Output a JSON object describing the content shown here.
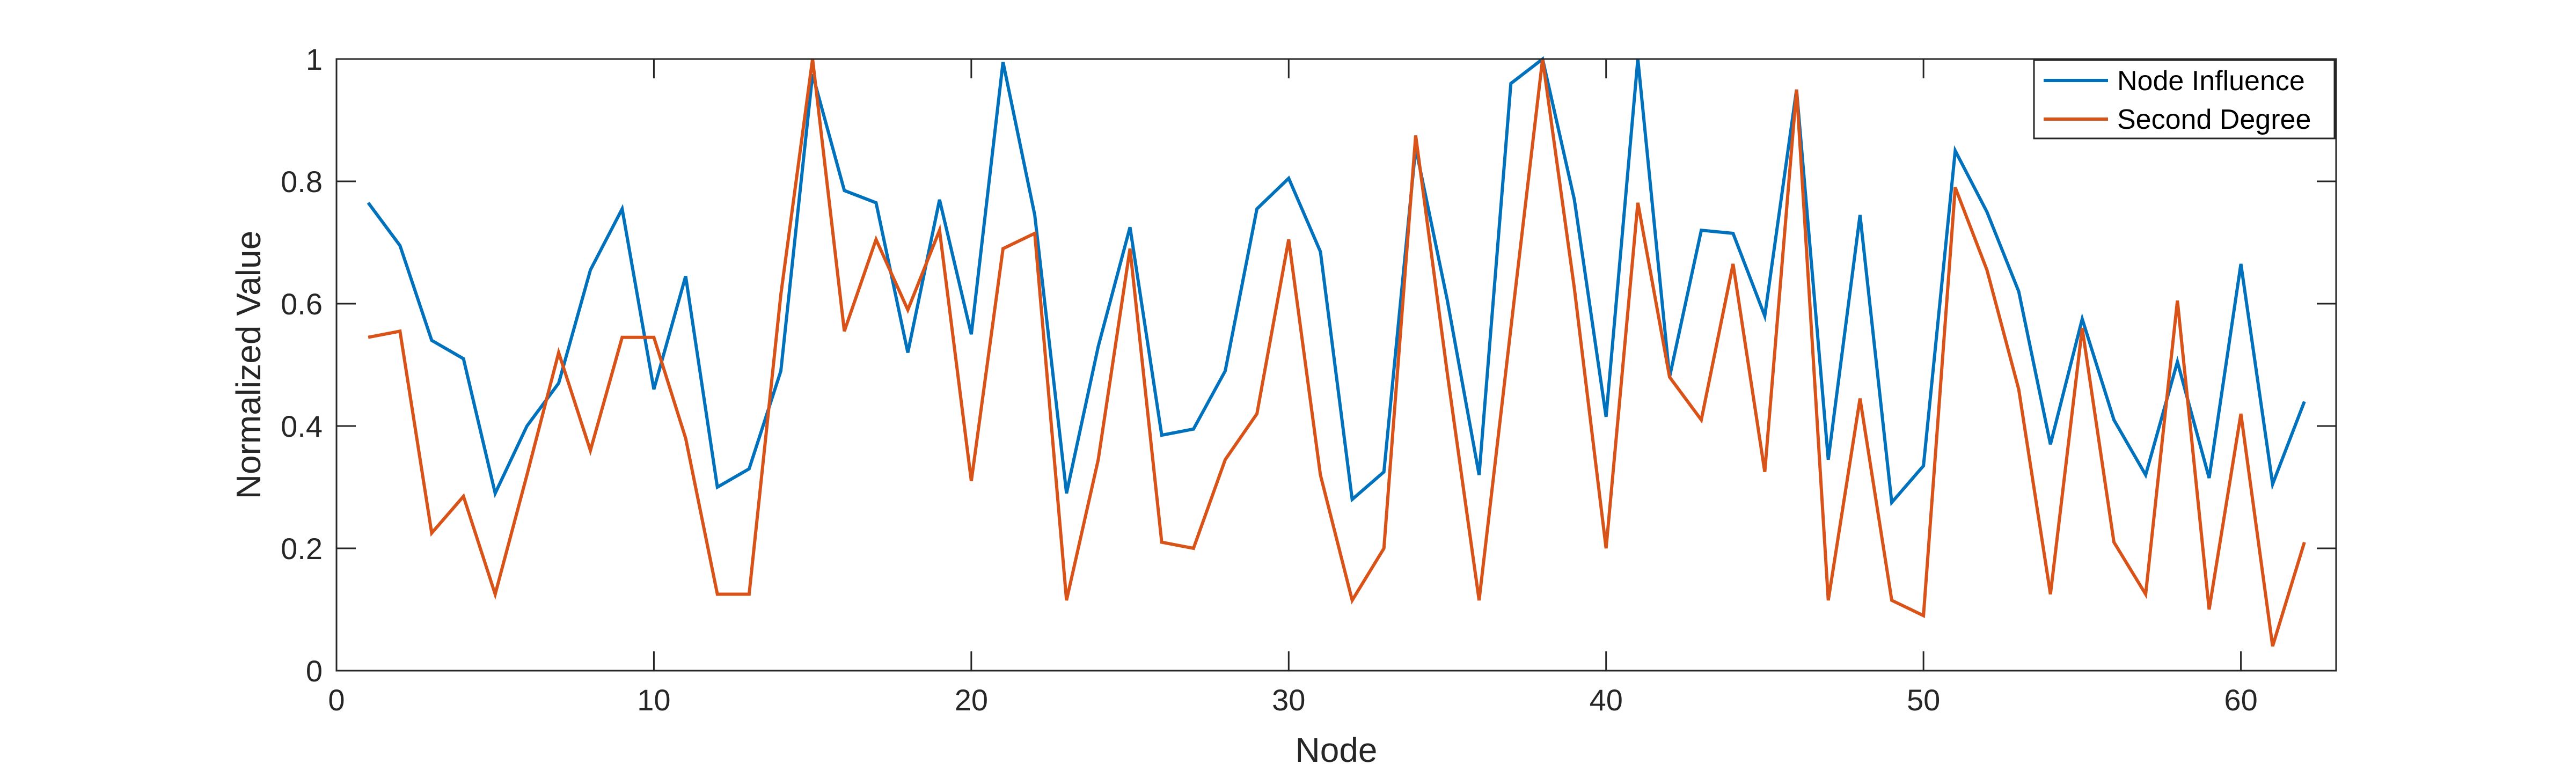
{
  "chart_data": {
    "type": "line",
    "xlabel": "Node",
    "ylabel": "Normalized Value",
    "xlim": [
      0,
      63
    ],
    "ylim": [
      0,
      1
    ],
    "xticks": [
      0,
      10,
      20,
      30,
      40,
      50,
      60
    ],
    "yticks": [
      0,
      0.2,
      0.4,
      0.6,
      0.8,
      1
    ],
    "ytick_labels": [
      "0",
      "0.2",
      "0.4",
      "0.6",
      "0.8",
      "1"
    ],
    "grid": false,
    "legend_position": "top-right",
    "x": [
      1,
      2,
      3,
      4,
      5,
      6,
      7,
      8,
      9,
      10,
      11,
      12,
      13,
      14,
      15,
      16,
      17,
      18,
      19,
      20,
      21,
      22,
      23,
      24,
      25,
      26,
      27,
      28,
      29,
      30,
      31,
      32,
      33,
      34,
      35,
      36,
      37,
      38,
      39,
      40,
      41,
      42,
      43,
      44,
      45,
      46,
      47,
      48,
      49,
      50,
      51,
      52,
      53,
      54,
      55,
      56,
      57,
      58,
      59,
      60,
      61,
      62
    ],
    "series": [
      {
        "name": "Node Influence",
        "color": "#0072BD",
        "values": [
          0.765,
          0.695,
          0.54,
          0.51,
          0.29,
          0.4,
          0.47,
          0.655,
          0.755,
          0.46,
          0.645,
          0.3,
          0.33,
          0.49,
          0.975,
          0.785,
          0.765,
          0.52,
          0.77,
          0.55,
          0.995,
          0.745,
          0.29,
          0.53,
          0.725,
          0.385,
          0.395,
          0.49,
          0.755,
          0.805,
          0.685,
          0.28,
          0.325,
          0.855,
          0.605,
          0.32,
          0.96,
          1.0,
          0.77,
          0.415,
          1.0,
          0.48,
          0.72,
          0.715,
          0.58,
          0.95,
          0.345,
          0.745,
          0.275,
          0.335,
          0.85,
          0.75,
          0.62,
          0.37,
          0.575,
          0.41,
          0.32,
          0.505,
          0.315,
          0.665,
          0.305,
          0.44
        ]
      },
      {
        "name": "Second Degree",
        "color": "#D95319",
        "values": [
          0.545,
          0.555,
          0.225,
          0.285,
          0.125,
          0.32,
          0.52,
          0.36,
          0.545,
          0.545,
          0.38,
          0.125,
          0.125,
          0.615,
          1.0,
          0.555,
          0.705,
          0.59,
          0.72,
          0.31,
          0.69,
          0.715,
          0.115,
          0.345,
          0.69,
          0.21,
          0.2,
          0.345,
          0.42,
          0.705,
          0.32,
          0.115,
          0.2,
          0.875,
          0.485,
          0.115,
          0.56,
          1.0,
          0.625,
          0.2,
          0.765,
          0.48,
          0.41,
          0.665,
          0.325,
          0.95,
          0.115,
          0.445,
          0.115,
          0.09,
          0.79,
          0.655,
          0.46,
          0.125,
          0.56,
          0.21,
          0.125,
          0.605,
          0.1,
          0.42,
          0.04,
          0.21
        ]
      }
    ]
  }
}
